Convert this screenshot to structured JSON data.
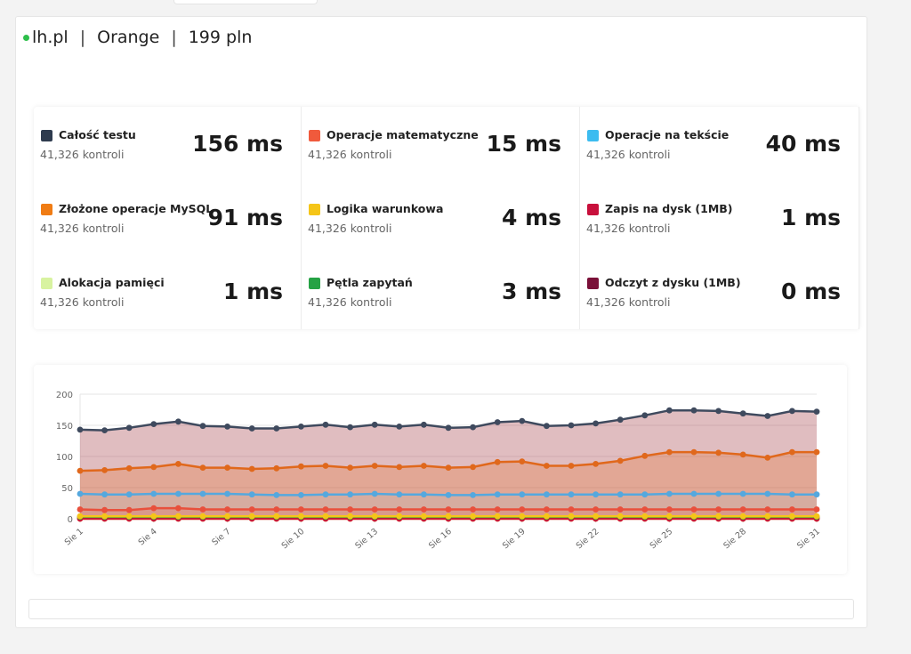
{
  "header": {
    "host": "lh.pl",
    "operator": "Orange",
    "price": "199 pln",
    "status_color": "#2dbf4a"
  },
  "stats": [
    [
      {
        "name": "Całość testu",
        "count": "41,326 kontroli",
        "value": "156 ms",
        "color": "#2e3b4e"
      },
      {
        "name": "Złożone operacje MySQL",
        "count": "41,326 kontroli",
        "value": "91 ms",
        "color": "#f07c14"
      },
      {
        "name": "Alokacja pamięci",
        "count": "41,326 kontroli",
        "value": "1 ms",
        "color": "#d8f3a0"
      }
    ],
    [
      {
        "name": "Operacje matematyczne",
        "count": "41,326 kontroli",
        "value": "15 ms",
        "color": "#f05a3c"
      },
      {
        "name": "Logika warunkowa",
        "count": "41,326 kontroli",
        "value": "4 ms",
        "color": "#f5c518"
      },
      {
        "name": "Pętla zapytań",
        "count": "41,326 kontroli",
        "value": "3 ms",
        "color": "#25a244"
      }
    ],
    [
      {
        "name": "Operacje na tekście",
        "count": "41,326 kontroli",
        "value": "40 ms",
        "color": "#3cbcf0"
      },
      {
        "name": "Zapis na dysk (1MB)",
        "count": "41,326 kontroli",
        "value": "1 ms",
        "color": "#c8103c"
      },
      {
        "name": "Odczyt z dysku (1MB)",
        "count": "41,326 kontroli",
        "value": "0 ms",
        "color": "#7a1038"
      }
    ]
  ],
  "chart_data": {
    "type": "area",
    "x": [
      "Sie 1",
      "Sie 2",
      "Sie 3",
      "Sie 4",
      "Sie 5",
      "Sie 6",
      "Sie 7",
      "Sie 8",
      "Sie 9",
      "Sie 10",
      "Sie 11",
      "Sie 12",
      "Sie 13",
      "Sie 14",
      "Sie 15",
      "Sie 16",
      "Sie 17",
      "Sie 18",
      "Sie 19",
      "Sie 20",
      "Sie 21",
      "Sie 22",
      "Sie 23",
      "Sie 24",
      "Sie 25",
      "Sie 26",
      "Sie 27",
      "Sie 28",
      "Sie 29",
      "Sie 30",
      "Sie 31"
    ],
    "xtick_labels": [
      "Sie 1",
      "Sie 4",
      "Sie 7",
      "Sie 10",
      "Sie 13",
      "Sie 16",
      "Sie 19",
      "Sie 22",
      "Sie 25",
      "Sie 28",
      "Sie 31"
    ],
    "yticks": [
      0,
      50,
      100,
      150,
      200
    ],
    "ylim": [
      0,
      200
    ],
    "grid": true,
    "series": [
      {
        "name": "Całość testu",
        "color": "#3f4a5e",
        "fill": "rgba(160,50,60,0.32)",
        "values": [
          143,
          142,
          146,
          152,
          156,
          149,
          148,
          145,
          145,
          148,
          151,
          147,
          151,
          148,
          151,
          146,
          147,
          155,
          157,
          149,
          150,
          153,
          159,
          166,
          174,
          174,
          173,
          169,
          165,
          173,
          172
        ]
      },
      {
        "name": "Złożone operacje MySQL",
        "color": "#e0681c",
        "fill": "rgba(230,120,60,0.32)",
        "values": [
          77,
          78,
          81,
          83,
          88,
          82,
          82,
          80,
          81,
          84,
          85,
          82,
          85,
          83,
          85,
          82,
          83,
          91,
          92,
          85,
          85,
          88,
          93,
          101,
          107,
          107,
          106,
          103,
          98,
          107,
          107
        ]
      },
      {
        "name": "Operacje na tekście",
        "color": "#55a8de",
        "fill": "rgba(150,200,230,0.15)",
        "values": [
          40,
          39,
          39,
          40,
          40,
          40,
          40,
          39,
          38,
          38,
          39,
          39,
          40,
          39,
          39,
          38,
          38,
          39,
          39,
          39,
          39,
          39,
          39,
          39,
          40,
          40,
          40,
          40,
          40,
          39,
          39
        ]
      },
      {
        "name": "Operacje matematyczne",
        "color": "#e8503c",
        "fill": "rgba(230,80,60,0.2)",
        "values": [
          15,
          14,
          14,
          17,
          17,
          15,
          15,
          15,
          15,
          15,
          15,
          15,
          15,
          15,
          15,
          15,
          15,
          15,
          15,
          15,
          15,
          15,
          15,
          15,
          15,
          15,
          15,
          15,
          15,
          15,
          15
        ]
      },
      {
        "name": "Logika warunkowa",
        "color": "#f5c518",
        "fill": "rgba(245,197,24,0.2)",
        "values": [
          4,
          4,
          4,
          4,
          4,
          4,
          4,
          4,
          4,
          4,
          4,
          4,
          4,
          4,
          4,
          4,
          4,
          4,
          4,
          4,
          4,
          4,
          4,
          4,
          4,
          4,
          4,
          4,
          4,
          4,
          4
        ]
      },
      {
        "name": "Pętla zapytań",
        "color": "#25a244",
        "fill": "rgba(37,162,68,0.15)",
        "values": [
          3,
          3,
          3,
          3,
          3,
          3,
          3,
          3,
          3,
          3,
          3,
          3,
          3,
          3,
          3,
          3,
          3,
          3,
          3,
          3,
          3,
          3,
          3,
          3,
          3,
          3,
          3,
          3,
          3,
          3,
          3
        ]
      },
      {
        "name": "Zapis na dysk (1MB)",
        "color": "#c8103c",
        "fill": "rgba(200,16,60,0.15)",
        "values": [
          1,
          1,
          1,
          1,
          1,
          1,
          1,
          1,
          1,
          1,
          1,
          1,
          1,
          1,
          1,
          1,
          1,
          1,
          1,
          1,
          1,
          1,
          1,
          1,
          1,
          1,
          1,
          1,
          1,
          1,
          1
        ]
      },
      {
        "name": "Odczyt z dysku (1MB)",
        "color": "#d6281e",
        "fill": "rgba(214,40,30,0.15)",
        "values": [
          0,
          0,
          0,
          0,
          0,
          0,
          0,
          0,
          0,
          0,
          0,
          0,
          0,
          0,
          0,
          0,
          0,
          0,
          0,
          0,
          0,
          0,
          0,
          0,
          0,
          0,
          0,
          0,
          0,
          0,
          0
        ]
      }
    ]
  }
}
